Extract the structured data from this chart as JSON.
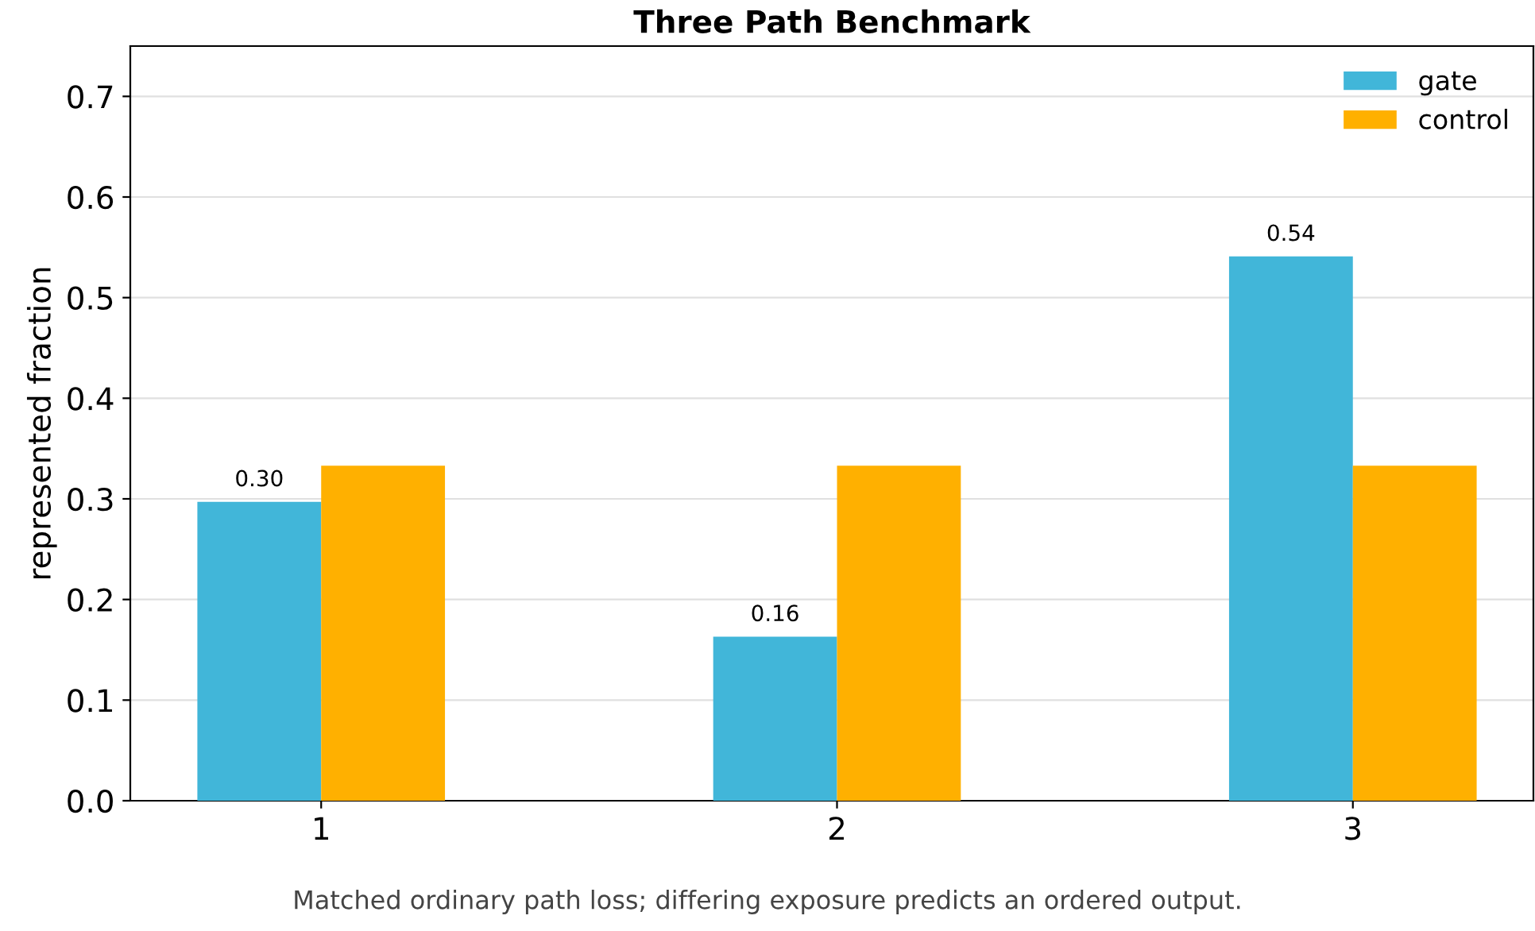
{
  "chart_data": {
    "type": "bar",
    "title": "Three Path Benchmark",
    "ylabel": "represented fraction",
    "categories": [
      "1",
      "2",
      "3"
    ],
    "series": [
      {
        "name": "gate",
        "color": "#41b6d9",
        "values": [
          0.297,
          0.163,
          0.541
        ],
        "value_labels": [
          "0.30",
          "0.16",
          "0.54"
        ]
      },
      {
        "name": "control",
        "color": "#ffb000",
        "values": [
          0.333,
          0.333,
          0.333
        ]
      }
    ],
    "ylim": [
      0,
      0.75
    ],
    "yticks": [
      {
        "value": 0,
        "label": "0.0"
      },
      0.1,
      0.2,
      0.3,
      0.4,
      0.5,
      0.6,
      0.7
    ],
    "grid": "y",
    "legend": "top right",
    "annotations": [
      "Matched ordinary path loss; differing exposure predicts an ordered output."
    ]
  }
}
